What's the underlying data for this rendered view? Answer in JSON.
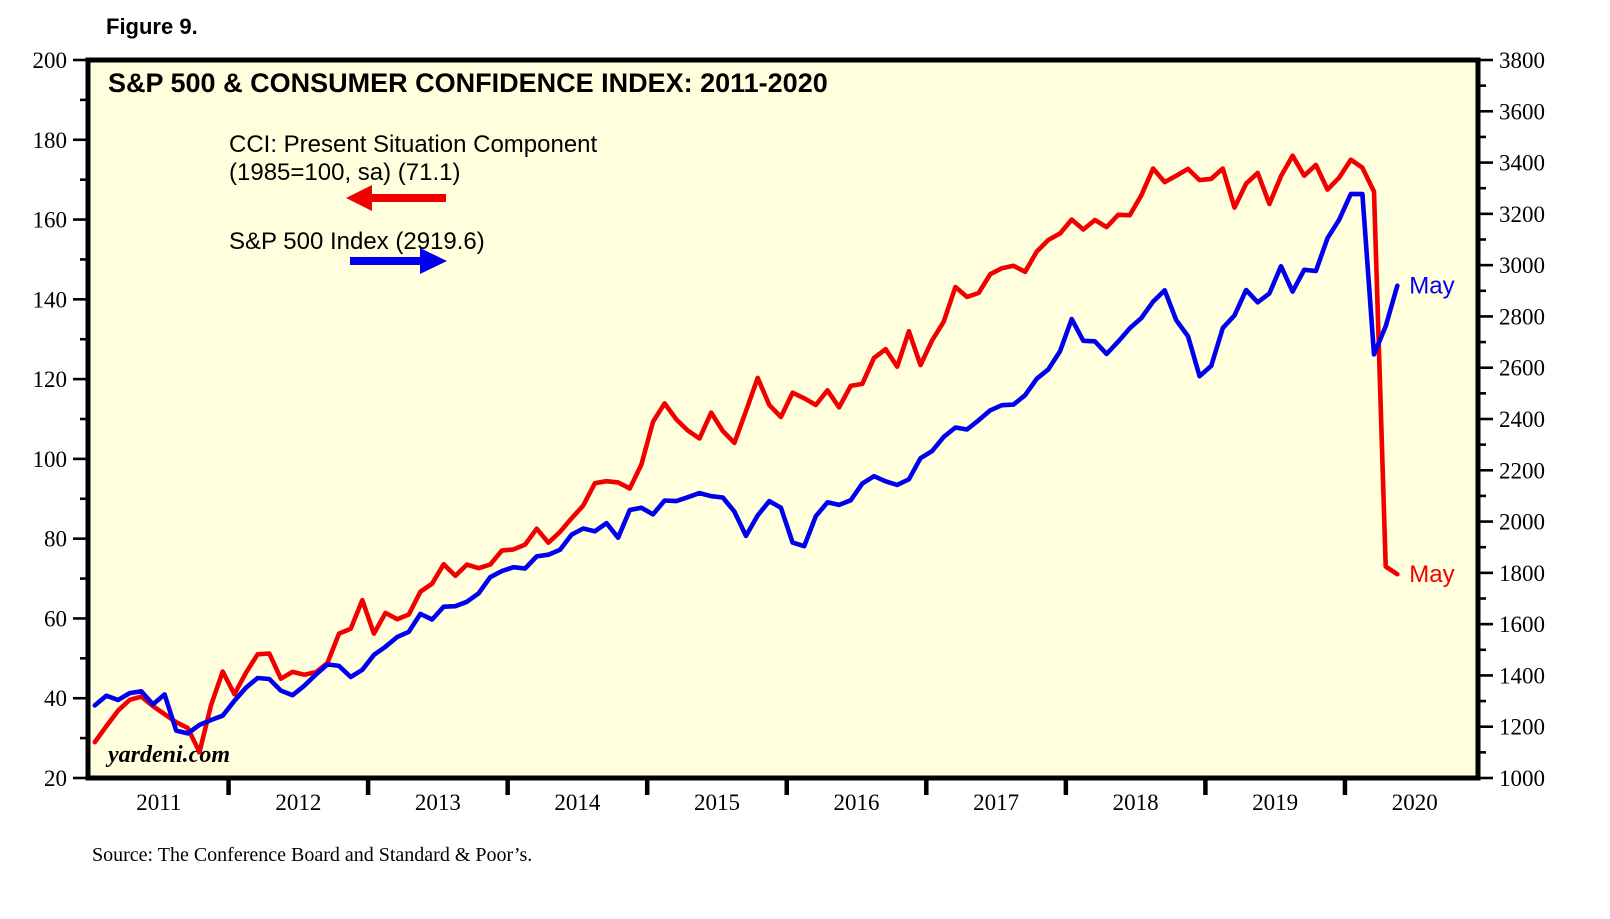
{
  "figure_label": "Figure 9.",
  "source_note": "Source: The Conference Board and Standard & Poor’s.",
  "watermark": "yardeni.com",
  "colors": {
    "cci_red": "#f10000",
    "spx_blue": "#0000ee",
    "plot_bg": "#ffffde",
    "frame": "#000000",
    "text": "#000000"
  },
  "chart_data": {
    "type": "line",
    "title": "S&P 500 & CONSUMER CONFIDENCE INDEX: 2011-2020",
    "x_axis": {
      "start_year": 2011,
      "start_month": 1,
      "end_year": 2020,
      "end_month": 5,
      "year_labels": [
        "2011",
        "2012",
        "2013",
        "2014",
        "2015",
        "2016",
        "2017",
        "2018",
        "2019",
        "2020"
      ]
    },
    "left_axis": {
      "min": 20,
      "max": 200,
      "major_step": 20,
      "minor_step": 10,
      "tick_labels": [
        20,
        40,
        60,
        80,
        100,
        120,
        140,
        160,
        180,
        200
      ]
    },
    "right_axis": {
      "min": 1000,
      "max": 3800,
      "major_step": 200,
      "minor_step": 100,
      "tick_labels": [
        1000,
        1200,
        1400,
        1600,
        1800,
        2000,
        2200,
        2400,
        2600,
        2800,
        3000,
        3200,
        3400,
        3600,
        3800
      ]
    },
    "legend": {
      "cci_line1": "CCI: Present Situation Component",
      "cci_line2": "(1985=100, sa) (71.1)",
      "spx_line1": "S&P 500 Index (2919.6)"
    },
    "series": [
      {
        "id": "cci",
        "name": "CCI: Present Situation Component (1985=100, sa)",
        "axis": "left",
        "color": "#f10000",
        "end_label": "May",
        "latest_value": 71.1,
        "values": [
          29.0,
          33.0,
          36.9,
          39.6,
          40.4,
          38.0,
          36.0,
          34.0,
          32.5,
          26.5,
          38.3,
          46.7,
          41.0,
          46.4,
          51.0,
          51.2,
          44.9,
          46.6,
          45.9,
          46.5,
          48.8,
          56.2,
          57.4,
          64.6,
          56.2,
          61.4,
          59.8,
          61.0,
          66.7,
          68.7,
          73.6,
          70.7,
          73.5,
          72.6,
          73.5,
          77.0,
          77.3,
          78.5,
          82.5,
          79.0,
          81.7,
          85.1,
          88.3,
          93.9,
          94.4,
          94.1,
          92.6,
          98.6,
          109.3,
          113.9,
          109.9,
          107.1,
          105.1,
          111.6,
          107.0,
          104.0,
          112.0,
          120.3,
          113.5,
          110.5,
          116.6,
          115.2,
          113.5,
          117.2,
          112.9,
          118.3,
          118.8,
          125.3,
          127.5,
          123.1,
          132.0,
          123.5,
          129.7,
          134.4,
          143.1,
          140.6,
          141.6,
          146.3,
          147.8,
          148.4,
          146.9,
          152.0,
          154.9,
          156.5,
          160.0,
          157.5,
          159.9,
          158.1,
          161.2,
          161.1,
          166.1,
          172.8,
          169.4,
          171.0,
          172.7,
          169.9,
          170.2,
          172.8,
          163.0,
          169.0,
          171.7,
          163.9,
          170.9,
          176.0,
          171.0,
          173.7,
          167.5,
          170.5,
          175.0,
          173.0,
          167.0,
          73.0,
          71.1
        ]
      },
      {
        "id": "spx",
        "name": "S&P 500 Index",
        "axis": "right",
        "color": "#0000ee",
        "end_label": "May",
        "latest_value": 2919.6,
        "values": [
          1283,
          1321,
          1304,
          1331,
          1338,
          1287,
          1326,
          1185,
          1174,
          1207,
          1226,
          1243,
          1301,
          1352,
          1390,
          1386,
          1341,
          1323,
          1359,
          1403,
          1443,
          1437,
          1394,
          1422,
          1480,
          1512,
          1550,
          1570,
          1640,
          1618,
          1668,
          1670,
          1687,
          1720,
          1783,
          1807,
          1822,
          1817,
          1864,
          1871,
          1890,
          1949,
          1973,
          1962,
          1994,
          1937,
          2045,
          2054,
          2028,
          2082,
          2080,
          2095,
          2111,
          2099,
          2094,
          2039,
          1944,
          2024,
          2080,
          2054,
          1918,
          1904,
          2021,
          2075,
          2065,
          2083,
          2148,
          2177,
          2157,
          2143,
          2165,
          2247,
          2275,
          2330,
          2367,
          2359,
          2395,
          2434,
          2454,
          2456,
          2493,
          2557,
          2594,
          2664,
          2790,
          2705,
          2703,
          2654,
          2702,
          2754,
          2794,
          2858,
          2902,
          2785,
          2723,
          2567,
          2607,
          2755,
          2804,
          2903,
          2855,
          2890,
          2996,
          2897,
          2982,
          2977,
          3105,
          3177,
          3278,
          3277,
          2652,
          2762,
          2920
        ]
      }
    ]
  }
}
